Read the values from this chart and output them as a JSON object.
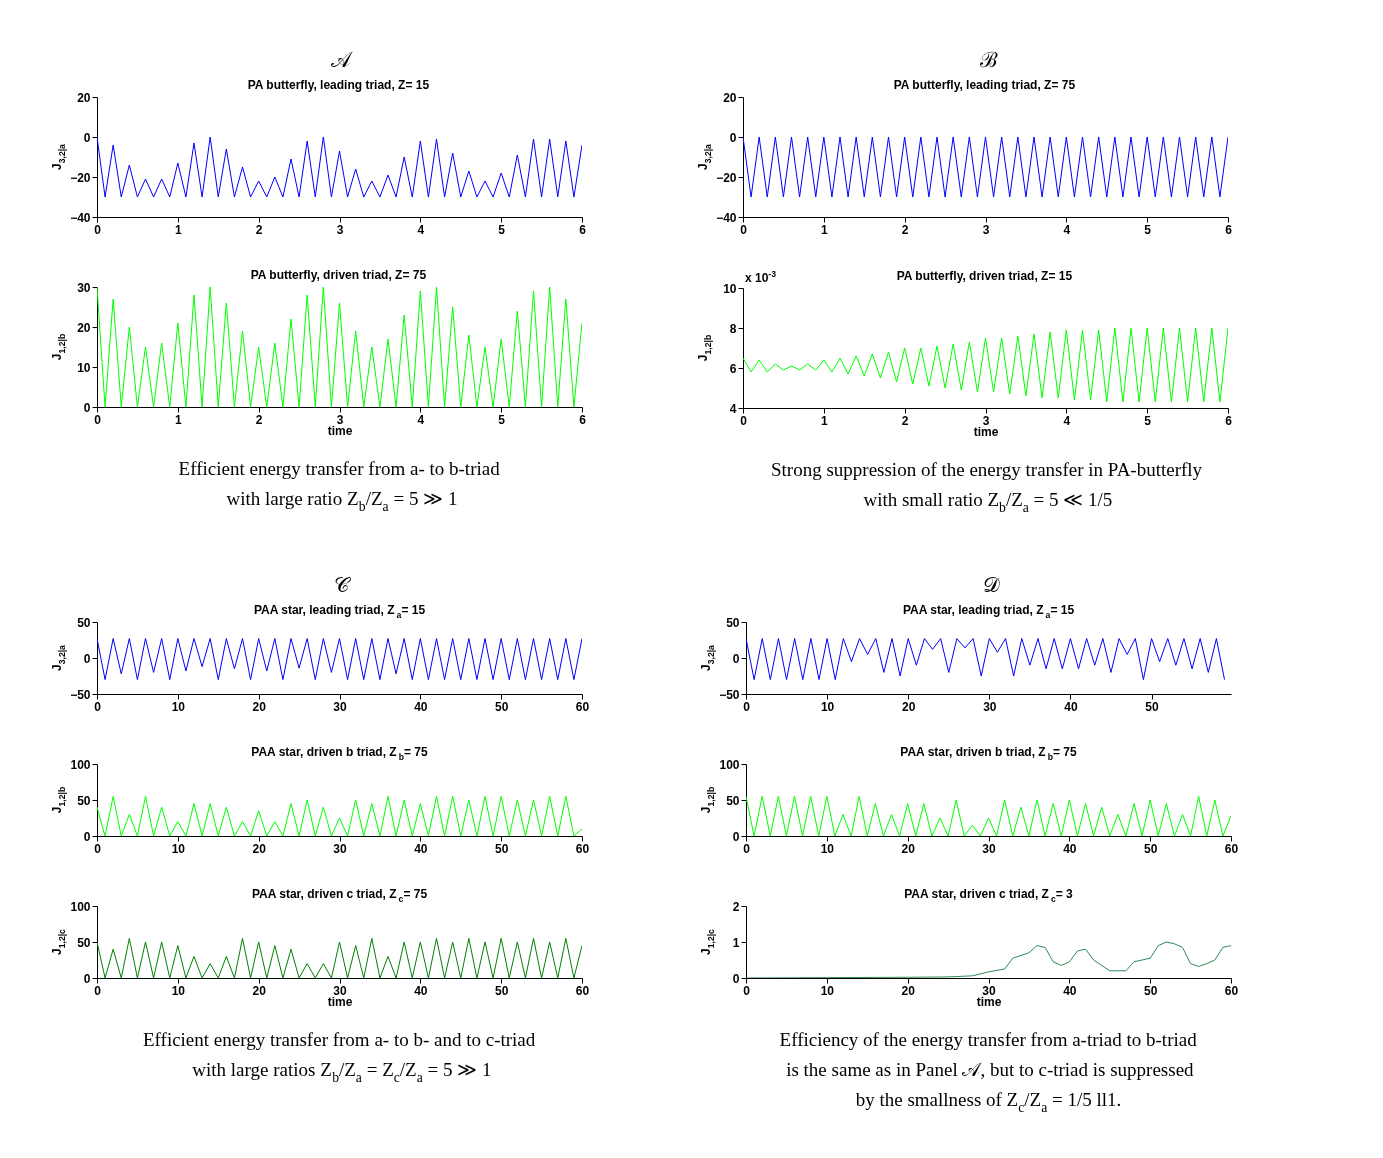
{
  "chart_data": [
    {
      "type": "line",
      "title": "PA butterfly, leading  triad,  Z= 15",
      "ylabel": "J$_{3,2|a}$",
      "annotations": [
        "𝒜",
        "Efficient energy transfer from a- to b-triad",
        "with large ratio Z$_{b}$/Z$_{a}$ = 5 ≫ 1"
      ],
      "xlim": [
        0,
        6
      ],
      "xticks": [
        0,
        1,
        2,
        3,
        4,
        5,
        6
      ],
      "ylim": [
        -40,
        20
      ],
      "yticks": [
        -40,
        -20,
        0,
        20
      ],
      "grid": false,
      "x": [
        0,
        0.1,
        0.2,
        0.3,
        0.4,
        0.5,
        0.6,
        0.7,
        0.8,
        0.9,
        1,
        1.1,
        1.2,
        1.3,
        1.4,
        1.5,
        1.6,
        1.7,
        1.8,
        1.9,
        2,
        2.1,
        2.2,
        2.3,
        2.4,
        2.5,
        2.6,
        2.7,
        2.8,
        2.9,
        3,
        3.1,
        3.2,
        3.3,
        3.4,
        3.5,
        3.6,
        3.7,
        3.8,
        3.9,
        4,
        4.1,
        4.2,
        4.3,
        4.4,
        4.5,
        4.6,
        4.7,
        4.8,
        4.9,
        5,
        5.1,
        5.2,
        5.3,
        5.4,
        5.5,
        5.6,
        5.7,
        5.8,
        5.9,
        6
      ],
      "series": [
        {
          "color": "#0000ff",
          "values": [
            0,
            -30,
            -4,
            -30,
            -14,
            -30,
            -21,
            -30,
            -21,
            -30,
            -13,
            -30,
            -3,
            -30,
            0,
            -30,
            -6,
            -30,
            -15,
            -30,
            -22,
            -30,
            -20,
            -30,
            -11,
            -30,
            -2,
            -30,
            0,
            -30,
            -7,
            -30,
            -16,
            -30,
            -22,
            -30,
            -19,
            -30,
            -10,
            -30,
            -2,
            -30,
            -1,
            -30,
            -8,
            -30,
            -17,
            -30,
            -22,
            -30,
            -18,
            -30,
            -9,
            -30,
            -1,
            -30,
            -1,
            -30,
            -2,
            -30,
            -4
          ]
        }
      ]
    },
    {
      "type": "line",
      "title": "PA butterfly, driven  triad,  Z= 75",
      "ylabel": "J$_{1,2|b}$",
      "xlabel": "time",
      "xlim": [
        0,
        6
      ],
      "xticks": [
        0,
        1,
        2,
        3,
        4,
        5,
        6
      ],
      "ylim": [
        0,
        30
      ],
      "yticks": [
        0,
        10,
        20,
        30
      ],
      "grid": false,
      "x": [
        0,
        0.1,
        0.2,
        0.3,
        0.4,
        0.5,
        0.6,
        0.7,
        0.8,
        0.9,
        1,
        1.1,
        1.2,
        1.3,
        1.4,
        1.5,
        1.6,
        1.7,
        1.8,
        1.9,
        2,
        2.1,
        2.2,
        2.3,
        2.4,
        2.5,
        2.6,
        2.7,
        2.8,
        2.9,
        3,
        3.1,
        3.2,
        3.3,
        3.4,
        3.5,
        3.6,
        3.7,
        3.8,
        3.9,
        4,
        4.1,
        4.2,
        4.3,
        4.4,
        4.5,
        4.6,
        4.7,
        4.8,
        4.9,
        5,
        5.1,
        5.2,
        5.3,
        5.4,
        5.5,
        5.6,
        5.7,
        5.8,
        5.9,
        6
      ],
      "series": [
        {
          "color": "#00ff00",
          "values": [
            30,
            0,
            27,
            0,
            20,
            0,
            15,
            0,
            16,
            0,
            21,
            0,
            28,
            0,
            30,
            0,
            26,
            0,
            19,
            0,
            15,
            0,
            16,
            0,
            22,
            0,
            28,
            0,
            30,
            0,
            26,
            0,
            19,
            0,
            15,
            0,
            17,
            0,
            23,
            0,
            29,
            0,
            30,
            0,
            25,
            0,
            18,
            0,
            15,
            0,
            17,
            0,
            24,
            0,
            29,
            0,
            30,
            0,
            27,
            0,
            21
          ]
        }
      ]
    },
    {
      "type": "line",
      "title": "PA butterfly, leading  triad,  Z= 75",
      "ylabel": "J$_{3,2|a}$",
      "annotations": [
        "ℬ",
        "Strong suppression of the energy transfer in PA-butterfly",
        "with small ratio Z$_{b}$/Z$_{a}$ = 5 ≪ 1/5"
      ],
      "xlim": [
        0,
        6
      ],
      "xticks": [
        0,
        1,
        2,
        3,
        4,
        5,
        6
      ],
      "ylim": [
        -40,
        20
      ],
      "yticks": [
        -40,
        -20,
        0,
        20
      ],
      "grid": false,
      "x": [
        0,
        0.1,
        0.2,
        0.3,
        0.4,
        0.5,
        0.6,
        0.7,
        0.8,
        0.9,
        1,
        1.1,
        1.2,
        1.3,
        1.4,
        1.5,
        1.6,
        1.7,
        1.8,
        1.9,
        2,
        2.1,
        2.2,
        2.3,
        2.4,
        2.5,
        2.6,
        2.7,
        2.8,
        2.9,
        3,
        3.1,
        3.2,
        3.3,
        3.4,
        3.5,
        3.6,
        3.7,
        3.8,
        3.9,
        4,
        4.1,
        4.2,
        4.3,
        4.4,
        4.5,
        4.6,
        4.7,
        4.8,
        4.9,
        5,
        5.1,
        5.2,
        5.3,
        5.4,
        5.5,
        5.6,
        5.7,
        5.8,
        5.9,
        6
      ],
      "series": [
        {
          "color": "#0000ff",
          "values": [
            0,
            -30,
            0,
            -30,
            0,
            -30,
            0,
            -30,
            0,
            -30,
            0,
            -30,
            0,
            -30,
            0,
            -30,
            0,
            -30,
            0,
            -30,
            0,
            -30,
            0,
            -30,
            0,
            -30,
            0,
            -30,
            0,
            -30,
            0,
            -30,
            0,
            -30,
            0,
            -30,
            0,
            -30,
            0,
            -30,
            0,
            -30,
            0,
            -30,
            0,
            -30,
            0,
            -30,
            0,
            -30,
            0,
            -30,
            0,
            -30,
            0,
            -30,
            0,
            -30,
            0,
            -30,
            0
          ]
        }
      ]
    },
    {
      "type": "line",
      "title": "PA butterfly, driven  triad,  Z= 15",
      "ylabel": "J$_{1,2|b}$",
      "xlabel": "time",
      "annotations": [
        "x 10$^{-3}$"
      ],
      "xlim": [
        0,
        6
      ],
      "xticks": [
        0,
        1,
        2,
        3,
        4,
        5,
        6
      ],
      "ylim": [
        4,
        10
      ],
      "yticks": [
        4,
        6,
        8,
        10
      ],
      "grid": false,
      "x": [
        0,
        0.1,
        0.2,
        0.3,
        0.4,
        0.5,
        0.6,
        0.7,
        0.8,
        0.9,
        1,
        1.1,
        1.2,
        1.3,
        1.4,
        1.5,
        1.6,
        1.7,
        1.8,
        1.9,
        2,
        2.1,
        2.2,
        2.3,
        2.4,
        2.5,
        2.6,
        2.7,
        2.8,
        2.9,
        3,
        3.1,
        3.2,
        3.3,
        3.4,
        3.5,
        3.6,
        3.7,
        3.8,
        3.9,
        4,
        4.1,
        4.2,
        4.3,
        4.4,
        4.5,
        4.6,
        4.7,
        4.8,
        4.9,
        5,
        5.1,
        5.2,
        5.3,
        5.4,
        5.5,
        5.6,
        5.7,
        5.8,
        5.9,
        6
      ],
      "series": [
        {
          "color": "#00ff00",
          "values": [
            6.5,
            5.8,
            6.4,
            5.8,
            6.2,
            5.9,
            6.1,
            5.9,
            6.2,
            5.9,
            6.4,
            5.8,
            6.5,
            5.7,
            6.6,
            5.6,
            6.7,
            5.5,
            6.8,
            5.3,
            7.0,
            5.2,
            7.0,
            5.1,
            7.1,
            5.0,
            7.2,
            4.9,
            7.3,
            4.8,
            7.5,
            4.8,
            7.5,
            4.7,
            7.6,
            4.6,
            7.7,
            4.5,
            7.8,
            4.5,
            7.9,
            4.4,
            7.9,
            4.4,
            7.9,
            4.3,
            8.0,
            4.3,
            8.0,
            4.3,
            8.0,
            4.3,
            8.0,
            4.3,
            8.0,
            4.3,
            8.0,
            4.3,
            8.0,
            4.3,
            8.0
          ]
        }
      ]
    },
    {
      "type": "line",
      "title": "PAA star, leading  triad,  Z$_{a}$= 15",
      "ylabel": "J$_{3,2|a}$",
      "annotations": [
        "𝒞",
        "Efficient energy transfer from a- to b- and to c-triad",
        "with large ratios Z$_{b}$/Z$_{a}$ = Z$_{c}$/Z$_{a}$ = 5 ≫ 1"
      ],
      "xlim": [
        0,
        60
      ],
      "xticks": [
        0,
        10,
        20,
        30,
        40,
        50,
        60
      ],
      "ylim": [
        -50,
        50
      ],
      "yticks": [
        -50,
        0,
        50
      ],
      "grid": false,
      "x": [
        0,
        1,
        2,
        3,
        4,
        5,
        6,
        7,
        8,
        9,
        10,
        11,
        12,
        13,
        14,
        15,
        16,
        17,
        18,
        19,
        20,
        21,
        22,
        23,
        24,
        25,
        26,
        27,
        28,
        29,
        30,
        31,
        32,
        33,
        34,
        35,
        36,
        37,
        38,
        39,
        40,
        41,
        42,
        43,
        44,
        45,
        46,
        47,
        48,
        49,
        50,
        51,
        52,
        53,
        54,
        55,
        56,
        57,
        58,
        59,
        60
      ],
      "series": [
        {
          "color": "#0000ff",
          "values": [
            27,
            -30,
            27,
            -22,
            27,
            -30,
            27,
            -20,
            27,
            -30,
            27,
            -18,
            27,
            -12,
            27,
            -30,
            27,
            -15,
            27,
            -30,
            27,
            -18,
            27,
            -30,
            27,
            -14,
            27,
            -30,
            27,
            -20,
            27,
            -30,
            27,
            -30,
            27,
            -30,
            27,
            -22,
            27,
            -30,
            27,
            -30,
            27,
            -30,
            27,
            -30,
            27,
            -30,
            27,
            -30,
            27,
            -30,
            27,
            -30,
            27,
            -30,
            27,
            -30,
            27,
            -30,
            27
          ]
        }
      ]
    },
    {
      "type": "line",
      "title": "PAA star, driven b  triad,  Z$_{b}$= 75",
      "ylabel": "J$_{1,2|b}$",
      "xlim": [
        0,
        60
      ],
      "xticks": [
        0,
        10,
        20,
        30,
        40,
        50,
        60
      ],
      "ylim": [
        0,
        100
      ],
      "yticks": [
        0,
        50,
        100
      ],
      "grid": false,
      "x": [
        0,
        1,
        2,
        3,
        4,
        5,
        6,
        7,
        8,
        9,
        10,
        11,
        12,
        13,
        14,
        15,
        16,
        17,
        18,
        19,
        20,
        21,
        22,
        23,
        24,
        25,
        26,
        27,
        28,
        29,
        30,
        31,
        32,
        33,
        34,
        35,
        36,
        37,
        38,
        39,
        40,
        41,
        42,
        43,
        44,
        45,
        46,
        47,
        48,
        49,
        50,
        51,
        52,
        53,
        54,
        55,
        56,
        57,
        58,
        59,
        60
      ],
      "series": [
        {
          "color": "#00ff00",
          "values": [
            40,
            0,
            55,
            0,
            30,
            0,
            55,
            0,
            40,
            0,
            20,
            0,
            45,
            0,
            45,
            0,
            40,
            0,
            20,
            0,
            35,
            0,
            20,
            0,
            45,
            0,
            50,
            0,
            40,
            0,
            25,
            0,
            50,
            0,
            45,
            0,
            55,
            0,
            50,
            0,
            45,
            0,
            55,
            0,
            55,
            0,
            50,
            0,
            55,
            0,
            55,
            0,
            50,
            0,
            50,
            0,
            55,
            0,
            55,
            0,
            10
          ]
        }
      ]
    },
    {
      "type": "line",
      "title": "PAA star, driven c  triad,  Z$_{c}$= 75",
      "ylabel": "J$_{1,2|c}$",
      "xlabel": "time",
      "xlim": [
        0,
        60
      ],
      "xticks": [
        0,
        10,
        20,
        30,
        40,
        50,
        60
      ],
      "ylim": [
        0,
        100
      ],
      "yticks": [
        0,
        50,
        100
      ],
      "grid": false,
      "x": [
        0,
        1,
        2,
        3,
        4,
        5,
        6,
        7,
        8,
        9,
        10,
        11,
        12,
        13,
        14,
        15,
        16,
        17,
        18,
        19,
        20,
        21,
        22,
        23,
        24,
        25,
        26,
        27,
        28,
        29,
        30,
        31,
        32,
        33,
        34,
        35,
        36,
        37,
        38,
        39,
        40,
        41,
        42,
        43,
        44,
        45,
        46,
        47,
        48,
        49,
        50,
        51,
        52,
        53,
        54,
        55,
        56,
        57,
        58,
        59,
        60
      ],
      "series": [
        {
          "color": "#008000",
          "values": [
            50,
            0,
            40,
            0,
            55,
            0,
            50,
            0,
            50,
            0,
            45,
            0,
            30,
            0,
            20,
            0,
            30,
            0,
            55,
            0,
            50,
            0,
            45,
            0,
            40,
            0,
            20,
            0,
            20,
            0,
            50,
            0,
            45,
            0,
            55,
            0,
            30,
            0,
            50,
            0,
            50,
            0,
            55,
            0,
            50,
            0,
            55,
            0,
            50,
            0,
            55,
            0,
            50,
            0,
            55,
            0,
            50,
            0,
            55,
            0,
            45
          ]
        }
      ]
    },
    {
      "type": "line",
      "title": "PAA star, leading  triad,  Z$_{a}$= 15",
      "ylabel": "J$_{3,2|a}$",
      "annotations": [
        "𝒟",
        "Efficiency of the energy transfer from a-triad to b-triad",
        "is the same as in Panel 𝒜, but to c-triad is suppressed",
        "by the smallness of Z$_{c}$/Z$_{a}$ = 1/5 ll1."
      ],
      "xlim": [
        0,
        59.8
      ],
      "xticks": [
        0,
        10,
        20,
        30,
        40,
        50
      ],
      "ylim": [
        -50,
        50
      ],
      "yticks": [
        -50,
        0,
        50
      ],
      "grid": false,
      "x": [
        0,
        1,
        2,
        3,
        4,
        5,
        6,
        7,
        8,
        9,
        10,
        11,
        12,
        13,
        14,
        15,
        16,
        17,
        18,
        19,
        20,
        21,
        22,
        23,
        24,
        25,
        26,
        27,
        28,
        29,
        30,
        31,
        32,
        33,
        34,
        35,
        36,
        37,
        38,
        39,
        40,
        41,
        42,
        43,
        44,
        45,
        46,
        47,
        48,
        49,
        50,
        51,
        52,
        53,
        54,
        55,
        56,
        57,
        58,
        59
      ],
      "series": [
        {
          "color": "#0000ff",
          "values": [
            27,
            -30,
            27,
            -30,
            27,
            -30,
            27,
            -30,
            27,
            -30,
            27,
            -30,
            27,
            -5,
            27,
            5,
            27,
            -20,
            27,
            -25,
            27,
            -10,
            27,
            12,
            27,
            -20,
            27,
            14,
            27,
            -25,
            27,
            8,
            27,
            -25,
            27,
            -10,
            27,
            -15,
            27,
            -15,
            27,
            -15,
            27,
            -10,
            27,
            -20,
            27,
            5,
            27,
            -30,
            27,
            -5,
            27,
            -10,
            27,
            -15,
            27,
            -20,
            27,
            -30
          ]
        }
      ]
    },
    {
      "type": "line",
      "title": "PAA star, driven b triad,  Z$_{b}$= 75",
      "ylabel": "J$_{1,2|b}$",
      "xlim": [
        0,
        60
      ],
      "xticks": [
        0,
        10,
        20,
        30,
        40,
        50,
        60
      ],
      "ylim": [
        0,
        100
      ],
      "yticks": [
        0,
        50,
        100
      ],
      "grid": false,
      "x": [
        0,
        1,
        2,
        3,
        4,
        5,
        6,
        7,
        8,
        9,
        10,
        11,
        12,
        13,
        14,
        15,
        16,
        17,
        18,
        19,
        20,
        21,
        22,
        23,
        24,
        25,
        26,
        27,
        28,
        29,
        30,
        31,
        32,
        33,
        34,
        35,
        36,
        37,
        38,
        39,
        40,
        41,
        42,
        43,
        44,
        45,
        46,
        47,
        48,
        49,
        50,
        51,
        52,
        53,
        54,
        55,
        56,
        57,
        58,
        59,
        60
      ],
      "series": [
        {
          "color": "#00ff00",
          "values": [
            55,
            0,
            55,
            0,
            55,
            0,
            55,
            0,
            55,
            0,
            55,
            0,
            30,
            0,
            55,
            0,
            45,
            0,
            30,
            0,
            45,
            0,
            45,
            0,
            25,
            0,
            50,
            0,
            15,
            0,
            25,
            0,
            50,
            0,
            40,
            0,
            50,
            0,
            45,
            0,
            50,
            0,
            45,
            0,
            40,
            0,
            30,
            0,
            45,
            0,
            50,
            0,
            45,
            0,
            30,
            0,
            55,
            0,
            50,
            0,
            28
          ]
        }
      ]
    },
    {
      "type": "line",
      "title": "PAA star, driven c triad,  Z$_{c}$= 3",
      "ylabel": "J$_{1,2|c}$",
      "xlabel": "time",
      "xlim": [
        0,
        60
      ],
      "xticks": [
        0,
        10,
        20,
        30,
        40,
        50,
        60
      ],
      "ylim": [
        0,
        2
      ],
      "yticks": [
        0,
        1,
        2
      ],
      "grid": false,
      "series": [
        {
          "color": "#2e8b57",
          "x": [
            0,
            10,
            20,
            25,
            28,
            30,
            32,
            33,
            35,
            36,
            37,
            38,
            39,
            40,
            41,
            42,
            43,
            44,
            45,
            46,
            47,
            48,
            50,
            51,
            52,
            53,
            54,
            55,
            56,
            57,
            58,
            59,
            60
          ],
          "values": [
            0,
            0.01,
            0.02,
            0.03,
            0.06,
            0.17,
            0.25,
            0.55,
            0.7,
            0.9,
            0.85,
            0.45,
            0.35,
            0.45,
            0.75,
            0.8,
            0.5,
            0.35,
            0.2,
            0.2,
            0.2,
            0.45,
            0.55,
            0.9,
            1.0,
            0.95,
            0.85,
            0.4,
            0.32,
            0.4,
            0.5,
            0.85,
            0.9
          ]
        }
      ]
    }
  ]
}
